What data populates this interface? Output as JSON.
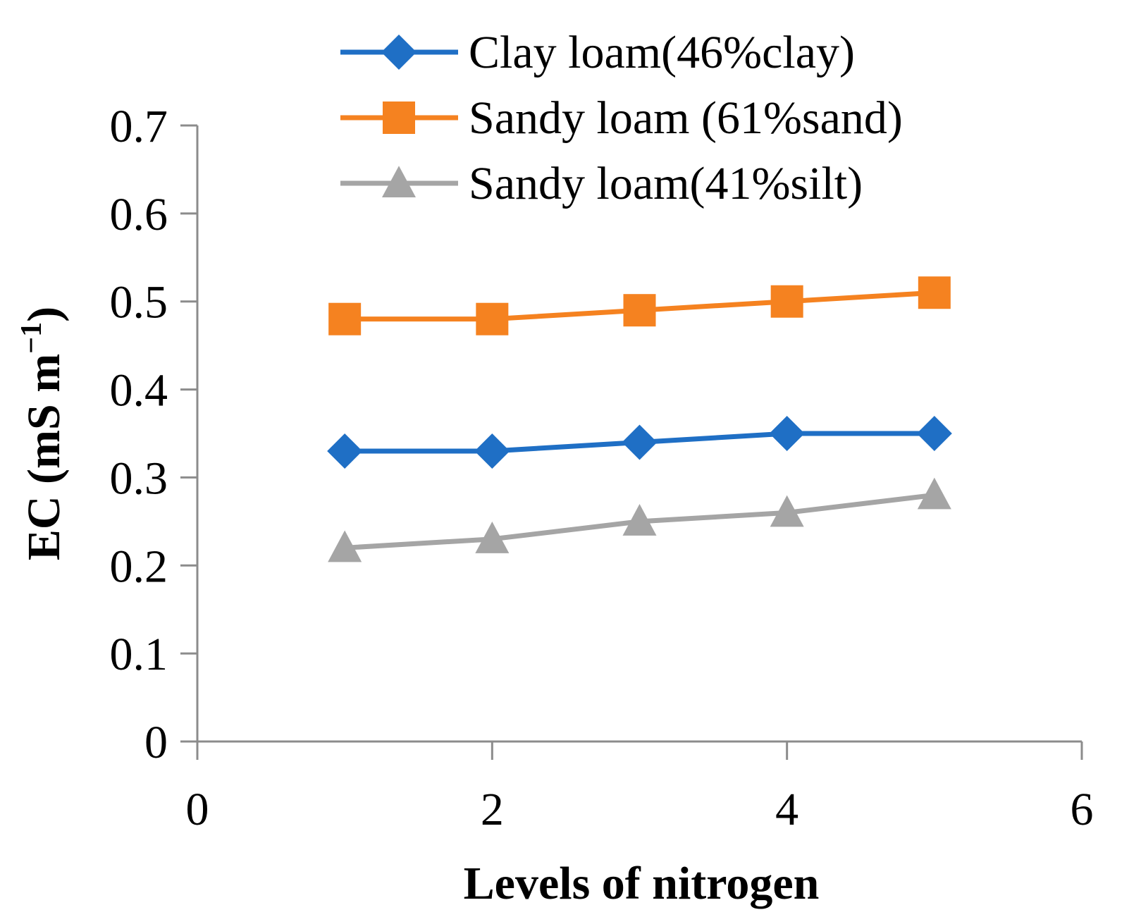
{
  "chart_data": {
    "type": "line",
    "title": "",
    "xlabel": "Levels of nitrogen",
    "ylabel": {
      "main": "EC (mS m",
      "sup": "−1",
      "close": ")"
    },
    "xlim": [
      0,
      6
    ],
    "ylim": [
      0,
      0.7
    ],
    "x_ticks": [
      0,
      2,
      4,
      6
    ],
    "x_tick_labels": [
      "0",
      "2",
      "4",
      "6"
    ],
    "y_ticks": [
      0,
      0.1,
      0.2,
      0.3,
      0.4,
      0.5,
      0.6,
      0.7
    ],
    "y_tick_labels": [
      "0",
      "0.1",
      "0.2",
      "0.3",
      "0.4",
      "0.5",
      "0.6",
      "0.7"
    ],
    "grid": false,
    "legend_position": "top",
    "series": [
      {
        "name": "Clay loam(46%clay)",
        "color": "#1f6fc5",
        "marker": "diamond",
        "x": [
          1,
          2,
          3,
          4,
          5
        ],
        "values": [
          0.33,
          0.33,
          0.34,
          0.35,
          0.35
        ]
      },
      {
        "name": "Sandy loam (61%sand)",
        "color": "#f58220",
        "marker": "square",
        "x": [
          1,
          2,
          3,
          4,
          5
        ],
        "values": [
          0.48,
          0.48,
          0.49,
          0.5,
          0.51
        ]
      },
      {
        "name": "Sandy loam(41%silt)",
        "color": "#a5a5a5",
        "marker": "triangle",
        "x": [
          1,
          2,
          3,
          4,
          5
        ],
        "values": [
          0.22,
          0.23,
          0.25,
          0.26,
          0.28
        ]
      }
    ]
  }
}
